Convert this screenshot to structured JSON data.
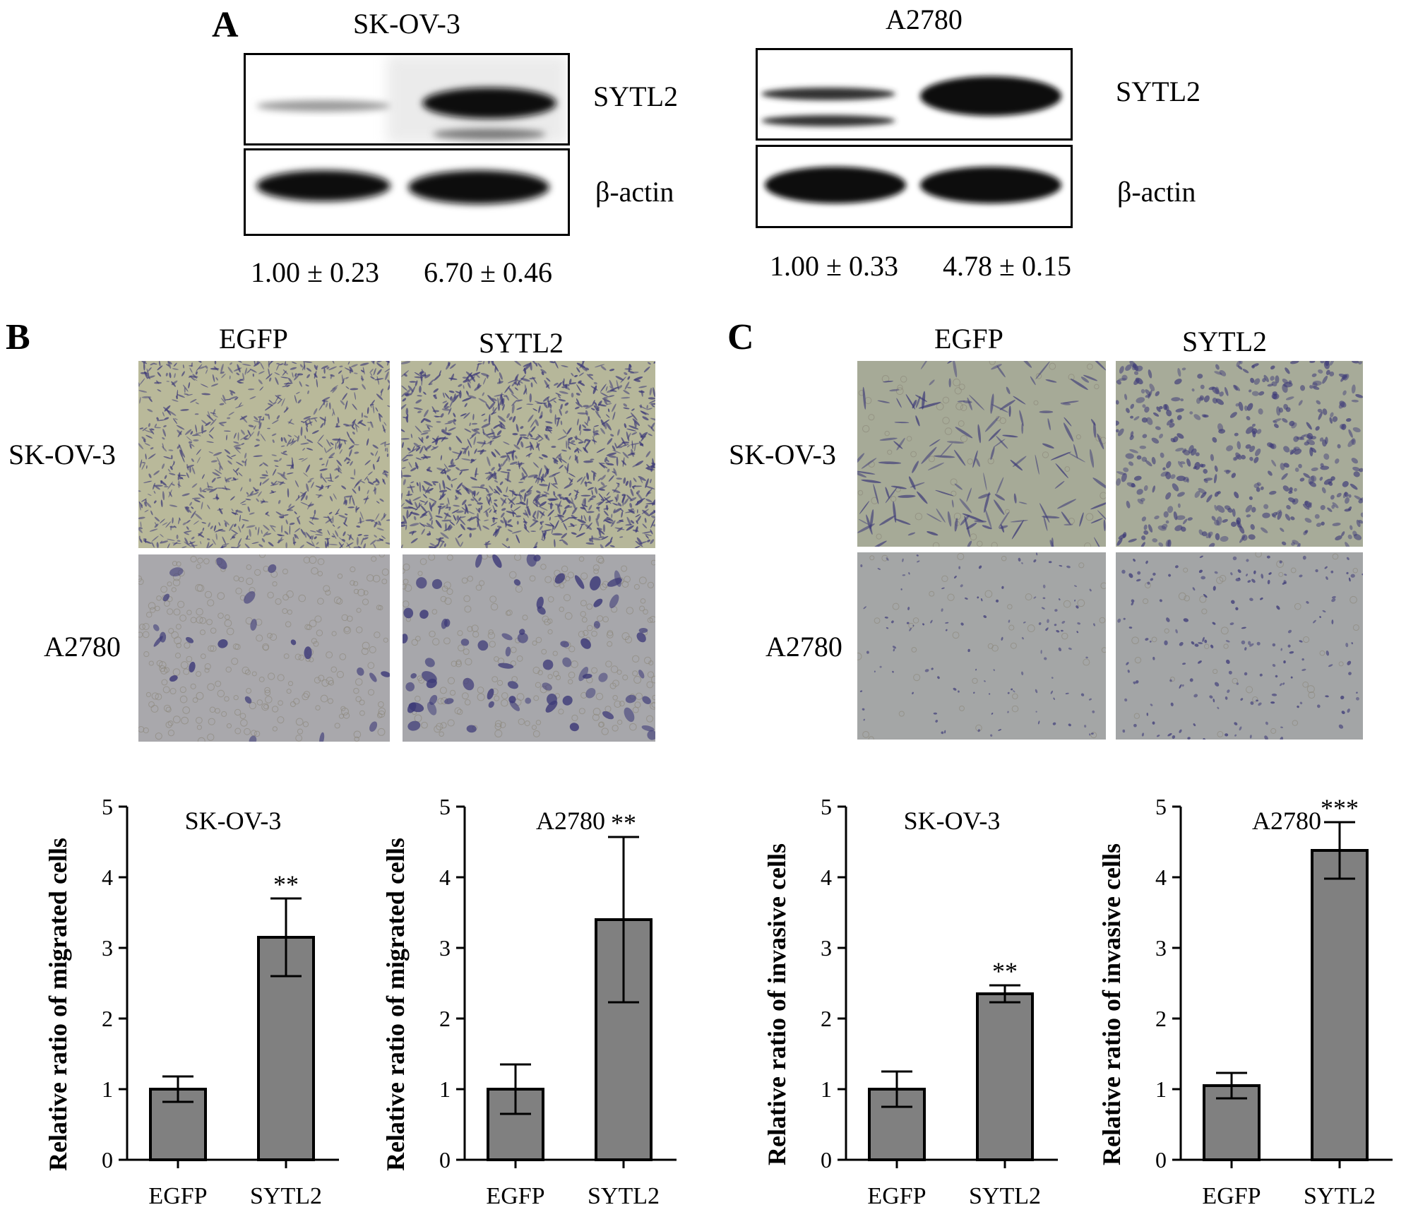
{
  "panels": {
    "a": {
      "letter": "A",
      "blots": [
        {
          "cell_line": "SK-OV-3",
          "proteins": [
            "SYTL2",
            "β-actin"
          ],
          "quant": [
            "1.00 ± 0.23",
            "6.70 ± 0.46"
          ]
        },
        {
          "cell_line": "A2780",
          "proteins": [
            "SYTL2",
            "β-actin"
          ],
          "quant": [
            "1.00 ± 0.33",
            "4.78 ± 0.15"
          ]
        }
      ]
    },
    "b": {
      "letter": "B",
      "columns": [
        "EGFP",
        "SYTL2"
      ],
      "rows": [
        "SK-OV-3",
        "A2780"
      ]
    },
    "c": {
      "letter": "C",
      "columns": [
        "EGFP",
        "SYTL2"
      ],
      "rows": [
        "SK-OV-3",
        "A2780"
      ]
    }
  },
  "chart_data": [
    {
      "type": "bar",
      "title": "SK-OV-3",
      "categories": [
        "EGFP",
        "SYTL2"
      ],
      "values": [
        1.0,
        3.15
      ],
      "errors": [
        0.18,
        0.55
      ],
      "significance": [
        "",
        "**"
      ],
      "ylabel": "Relative ratio of migrated cells",
      "xlabel": "",
      "ylim": [
        0,
        5
      ],
      "yticks": [
        "0",
        "1",
        "2",
        "3",
        "4",
        "5"
      ]
    },
    {
      "type": "bar",
      "title": "A2780",
      "categories": [
        "EGFP",
        "SYTL2"
      ],
      "values": [
        1.0,
        3.4
      ],
      "errors": [
        0.35,
        1.17
      ],
      "significance": [
        "",
        "**"
      ],
      "ylabel": "Relative ratio of migrated cells",
      "xlabel": "",
      "ylim": [
        0,
        5
      ],
      "yticks": [
        "0",
        "1",
        "2",
        "3",
        "4",
        "5"
      ]
    },
    {
      "type": "bar",
      "title": "SK-OV-3",
      "categories": [
        "EGFP",
        "SYTL2"
      ],
      "values": [
        1.0,
        2.35
      ],
      "errors": [
        0.25,
        0.12
      ],
      "significance": [
        "",
        "**"
      ],
      "ylabel": "Relative ratio of invasive cells",
      "xlabel": "",
      "ylim": [
        0,
        5
      ],
      "yticks": [
        "0",
        "1",
        "2",
        "3",
        "4",
        "5"
      ]
    },
    {
      "type": "bar",
      "title": "A2780",
      "categories": [
        "EGFP",
        "SYTL2"
      ],
      "values": [
        1.05,
        4.38
      ],
      "errors": [
        0.18,
        0.4
      ],
      "significance": [
        "",
        "***"
      ],
      "ylabel": "Relative ratio of invasive cells",
      "xlabel": "",
      "ylim": [
        0,
        5
      ],
      "yticks": [
        "0",
        "1",
        "2",
        "3",
        "4",
        "5"
      ]
    }
  ],
  "colors": {
    "bar_fill": "#808080",
    "bar_stroke": "#000000",
    "stain_dark": "#3d3a78",
    "migration_bg_skov3": "#b9b99a",
    "migration_bg_a2780": "#a9a8ac",
    "invasion_bg_skov3": "#a6aa97",
    "invasion_bg_a2780": "#a4a6a6"
  }
}
